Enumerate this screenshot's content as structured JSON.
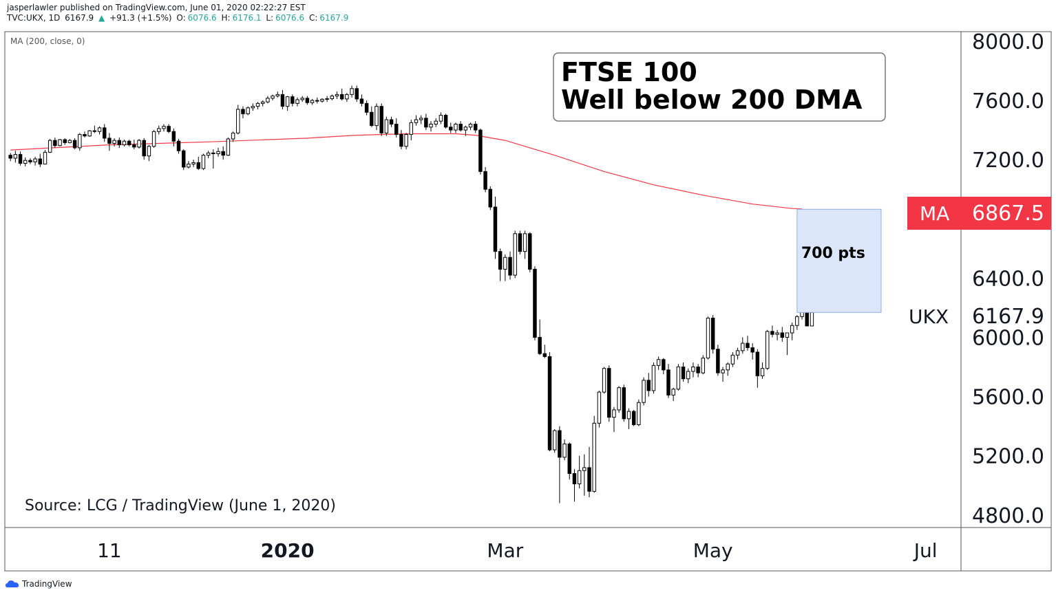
{
  "header": {
    "published_line": "jasperlawler published on TradingView.com, June 01, 2020 02:22:27 EST",
    "symbol": "TVC:UKX, 1D",
    "last": "6167.9",
    "change_arrow": "▲",
    "change": "+91.3 (+1.5%)",
    "open_label": "O:",
    "open": "6076.6",
    "high_label": "H:",
    "high": "6176.1",
    "low_label": "L:",
    "low": "6076.6",
    "close_label": "C:",
    "close": "6167.9"
  },
  "ma_legend": "MA (200, close, 0)",
  "annotations": {
    "title_box": [
      "FTSE 100",
      "Well below 200 DMA"
    ],
    "gap_label": "700 pts",
    "source": "Source: LCG / TradingView (June 1, 2020)"
  },
  "price_tags": {
    "ma_label": "MA",
    "ma_value": "6867.5",
    "symbol_label": "UKX",
    "symbol_value": "6167.9"
  },
  "footer": {
    "brand": "TradingView"
  },
  "colors": {
    "ma_line": "#f23645",
    "ma_tag": "#f23645",
    "gap_box": "#dbe6fa",
    "gap_box_border": "#8fb0e8",
    "candle_down": "#000000",
    "candle_up_fill": "#ffffff"
  },
  "chart_data": {
    "type": "candlestick",
    "title": "FTSE 100",
    "y_ticks": [
      "8000.0",
      "7600.0",
      "7200.0",
      "6400.0",
      "6000.0",
      "5600.0",
      "5200.0",
      "4800.0"
    ],
    "y_tick_values": [
      8000,
      7600,
      7200,
      6400,
      6000,
      5600,
      5200,
      4800
    ],
    "x_ticks": [
      {
        "label": "11",
        "bold": false,
        "index": 20
      },
      {
        "label": "2020",
        "bold": true,
        "index": 56
      },
      {
        "label": "Mar",
        "bold": false,
        "index": 100
      },
      {
        "label": "May",
        "bold": false,
        "index": 142
      },
      {
        "label": "Jul",
        "bold": false,
        "index": 185
      }
    ],
    "ylim": [
      4720,
      8060
    ],
    "x_range": [
      -1,
      192
    ],
    "gap_box": {
      "x_start_index": 159,
      "x_end_index": 176,
      "y_top": 6865,
      "y_bottom": 6168
    },
    "moving_average_200": [
      [
        0,
        7265
      ],
      [
        20,
        7300
      ],
      [
        40,
        7320
      ],
      [
        60,
        7345
      ],
      [
        70,
        7365
      ],
      [
        80,
        7375
      ],
      [
        90,
        7375
      ],
      [
        94,
        7365
      ],
      [
        100,
        7330
      ],
      [
        110,
        7230
      ],
      [
        120,
        7120
      ],
      [
        130,
        7030
      ],
      [
        140,
        6960
      ],
      [
        150,
        6900
      ],
      [
        158,
        6870
      ],
      [
        160,
        6867.5
      ]
    ],
    "candles": [
      [
        7230,
        7245,
        7190,
        7210
      ],
      [
        7210,
        7260,
        7180,
        7235
      ],
      [
        7235,
        7255,
        7160,
        7175
      ],
      [
        7175,
        7215,
        7155,
        7195
      ],
      [
        7195,
        7210,
        7170,
        7185
      ],
      [
        7185,
        7220,
        7160,
        7205
      ],
      [
        7205,
        7240,
        7150,
        7170
      ],
      [
        7170,
        7265,
        7170,
        7250
      ],
      [
        7250,
        7340,
        7245,
        7330
      ],
      [
        7330,
        7350,
        7280,
        7295
      ],
      [
        7295,
        7340,
        7290,
        7335
      ],
      [
        7335,
        7345,
        7300,
        7315
      ],
      [
        7315,
        7340,
        7310,
        7330
      ],
      [
        7330,
        7345,
        7270,
        7280
      ],
      [
        7280,
        7380,
        7260,
        7370
      ],
      [
        7370,
        7390,
        7350,
        7360
      ],
      [
        7360,
        7400,
        7355,
        7395
      ],
      [
        7395,
        7430,
        7380,
        7390
      ],
      [
        7390,
        7425,
        7370,
        7415
      ],
      [
        7415,
        7440,
        7320,
        7345
      ],
      [
        7345,
        7380,
        7260,
        7310
      ],
      [
        7310,
        7345,
        7290,
        7330
      ],
      [
        7330,
        7350,
        7280,
        7300
      ],
      [
        7300,
        7335,
        7290,
        7325
      ],
      [
        7325,
        7335,
        7290,
        7300
      ],
      [
        7300,
        7335,
        7270,
        7285
      ],
      [
        7285,
        7340,
        7275,
        7330
      ],
      [
        7330,
        7345,
        7200,
        7225
      ],
      [
        7225,
        7300,
        7190,
        7290
      ],
      [
        7290,
        7400,
        7280,
        7390
      ],
      [
        7390,
        7430,
        7370,
        7410
      ],
      [
        7410,
        7440,
        7390,
        7425
      ],
      [
        7425,
        7440,
        7380,
        7390
      ],
      [
        7390,
        7410,
        7290,
        7325
      ],
      [
        7325,
        7340,
        7240,
        7260
      ],
      [
        7260,
        7270,
        7130,
        7150
      ],
      [
        7150,
        7190,
        7140,
        7170
      ],
      [
        7170,
        7200,
        7150,
        7180
      ],
      [
        7180,
        7220,
        7130,
        7140
      ],
      [
        7140,
        7240,
        7130,
        7230
      ],
      [
        7230,
        7260,
        7210,
        7245
      ],
      [
        7245,
        7270,
        7140,
        7240
      ],
      [
        7240,
        7280,
        7220,
        7255
      ],
      [
        7255,
        7290,
        7200,
        7230
      ],
      [
        7230,
        7350,
        7225,
        7340
      ],
      [
        7340,
        7390,
        7320,
        7380
      ],
      [
        7380,
        7570,
        7370,
        7540
      ],
      [
        7540,
        7560,
        7480,
        7510
      ],
      [
        7510,
        7560,
        7500,
        7550
      ],
      [
        7550,
        7580,
        7530,
        7560
      ],
      [
        7560,
        7590,
        7540,
        7580
      ],
      [
        7580,
        7600,
        7560,
        7590
      ],
      [
        7590,
        7630,
        7580,
        7615
      ],
      [
        7615,
        7640,
        7600,
        7630
      ],
      [
        7630,
        7660,
        7620,
        7640
      ],
      [
        7640,
        7670,
        7540,
        7560
      ],
      [
        7560,
        7630,
        7530,
        7625
      ],
      [
        7625,
        7640,
        7560,
        7580
      ],
      [
        7580,
        7620,
        7560,
        7605
      ],
      [
        7605,
        7630,
        7590,
        7615
      ],
      [
        7615,
        7630,
        7570,
        7585
      ],
      [
        7585,
        7610,
        7570,
        7600
      ],
      [
        7600,
        7620,
        7580,
        7595
      ],
      [
        7595,
        7615,
        7585,
        7608
      ],
      [
        7608,
        7630,
        7590,
        7612
      ],
      [
        7612,
        7640,
        7600,
        7630
      ],
      [
        7630,
        7660,
        7610,
        7640
      ],
      [
        7640,
        7680,
        7600,
        7610
      ],
      [
        7610,
        7650,
        7590,
        7640
      ],
      [
        7640,
        7700,
        7620,
        7680
      ],
      [
        7680,
        7700,
        7590,
        7610
      ],
      [
        7610,
        7640,
        7560,
        7580
      ],
      [
        7580,
        7600,
        7500,
        7520
      ],
      [
        7520,
        7560,
        7420,
        7430
      ],
      [
        7430,
        7580,
        7400,
        7560
      ],
      [
        7560,
        7580,
        7360,
        7380
      ],
      [
        7380,
        7490,
        7360,
        7470
      ],
      [
        7470,
        7490,
        7420,
        7440
      ],
      [
        7440,
        7480,
        7350,
        7370
      ],
      [
        7370,
        7400,
        7270,
        7290
      ],
      [
        7290,
        7380,
        7270,
        7370
      ],
      [
        7370,
        7470,
        7330,
        7450
      ],
      [
        7450,
        7500,
        7430,
        7470
      ],
      [
        7470,
        7500,
        7440,
        7480
      ],
      [
        7480,
        7510,
        7400,
        7420
      ],
      [
        7420,
        7460,
        7390,
        7440
      ],
      [
        7440,
        7480,
        7420,
        7460
      ],
      [
        7460,
        7520,
        7440,
        7500
      ],
      [
        7500,
        7510,
        7410,
        7420
      ],
      [
        7420,
        7450,
        7380,
        7400
      ],
      [
        7400,
        7450,
        7380,
        7440
      ],
      [
        7440,
        7460,
        7390,
        7400
      ],
      [
        7400,
        7430,
        7360,
        7420
      ],
      [
        7420,
        7450,
        7400,
        7440
      ],
      [
        7440,
        7460,
        7380,
        7400
      ],
      [
        7400,
        7410,
        7100,
        7120
      ],
      [
        7120,
        7150,
        6980,
        7000
      ],
      [
        7000,
        7020,
        6860,
        6880
      ],
      [
        6880,
        6950,
        6530,
        6580
      ],
      [
        6580,
        6600,
        6380,
        6460
      ],
      [
        6460,
        6560,
        6380,
        6540
      ],
      [
        6540,
        6580,
        6390,
        6420
      ],
      [
        6420,
        6720,
        6400,
        6700
      ],
      [
        6700,
        6720,
        6560,
        6580
      ],
      [
        6580,
        6720,
        6530,
        6700
      ],
      [
        6700,
        6710,
        6440,
        6460
      ],
      [
        6460,
        6480,
        5980,
        6000
      ],
      [
        6000,
        6120,
        5880,
        5890
      ],
      [
        5890,
        5950,
        5860,
        5870
      ],
      [
        5870,
        5900,
        5230,
        5240
      ],
      [
        5240,
        5380,
        5220,
        5370
      ],
      [
        5370,
        5400,
        4880,
        5190
      ],
      [
        5190,
        5310,
        5170,
        5280
      ],
      [
        5280,
        5290,
        5040,
        5080
      ],
      [
        5080,
        5110,
        4890,
        5010
      ],
      [
        5010,
        5200,
        4980,
        5100
      ],
      [
        5100,
        5210,
        4930,
        5120
      ],
      [
        5120,
        5260,
        4920,
        4960
      ],
      [
        4960,
        5470,
        4950,
        5420
      ],
      [
        5420,
        5640,
        5390,
        5630
      ],
      [
        5630,
        5800,
        5620,
        5790
      ],
      [
        5790,
        5810,
        5430,
        5460
      ],
      [
        5460,
        5530,
        5360,
        5510
      ],
      [
        5510,
        5670,
        5490,
        5660
      ],
      [
        5660,
        5680,
        5430,
        5450
      ],
      [
        5450,
        5520,
        5380,
        5500
      ],
      [
        5500,
        5510,
        5400,
        5410
      ],
      [
        5410,
        5580,
        5400,
        5560
      ],
      [
        5560,
        5730,
        5540,
        5710
      ],
      [
        5710,
        5760,
        5600,
        5640
      ],
      [
        5640,
        5830,
        5620,
        5810
      ],
      [
        5810,
        5870,
        5780,
        5850
      ],
      [
        5850,
        5860,
        5750,
        5780
      ],
      [
        5780,
        5820,
        5590,
        5610
      ],
      [
        5610,
        5660,
        5570,
        5650
      ],
      [
        5650,
        5820,
        5640,
        5800
      ],
      [
        5800,
        5830,
        5700,
        5720
      ],
      [
        5720,
        5790,
        5690,
        5770
      ],
      [
        5770,
        5830,
        5730,
        5800
      ],
      [
        5800,
        5820,
        5730,
        5760
      ],
      [
        5760,
        5880,
        5750,
        5860
      ],
      [
        5860,
        6140,
        5850,
        6130
      ],
      [
        6130,
        6150,
        5890,
        5920
      ],
      [
        5920,
        5950,
        5740,
        5760
      ],
      [
        5760,
        5800,
        5700,
        5780
      ],
      [
        5780,
        5830,
        5740,
        5820
      ],
      [
        5820,
        5900,
        5800,
        5880
      ],
      [
        5880,
        5930,
        5850,
        5910
      ],
      [
        5910,
        6000,
        5890,
        5960
      ],
      [
        5960,
        6010,
        5910,
        5930
      ],
      [
        5930,
        5960,
        5850,
        5900
      ],
      [
        5900,
        5920,
        5660,
        5740
      ],
      [
        5740,
        5830,
        5720,
        5790
      ],
      [
        5790,
        6050,
        5780,
        6040
      ],
      [
        6040,
        6080,
        6000,
        6020
      ],
      [
        6020,
        6050,
        5980,
        6030
      ],
      [
        6030,
        6070,
        5970,
        6000
      ],
      [
        6000,
        6030,
        5880,
        6030
      ],
      [
        6030,
        6100,
        5980,
        6080
      ],
      [
        6080,
        6150,
        6050,
        6140
      ],
      [
        6140,
        6230,
        6120,
        6210
      ],
      [
        6210,
        6220,
        6080,
        6076.6
      ],
      [
        6076.6,
        6176.1,
        6076.6,
        6167.9
      ]
    ]
  }
}
